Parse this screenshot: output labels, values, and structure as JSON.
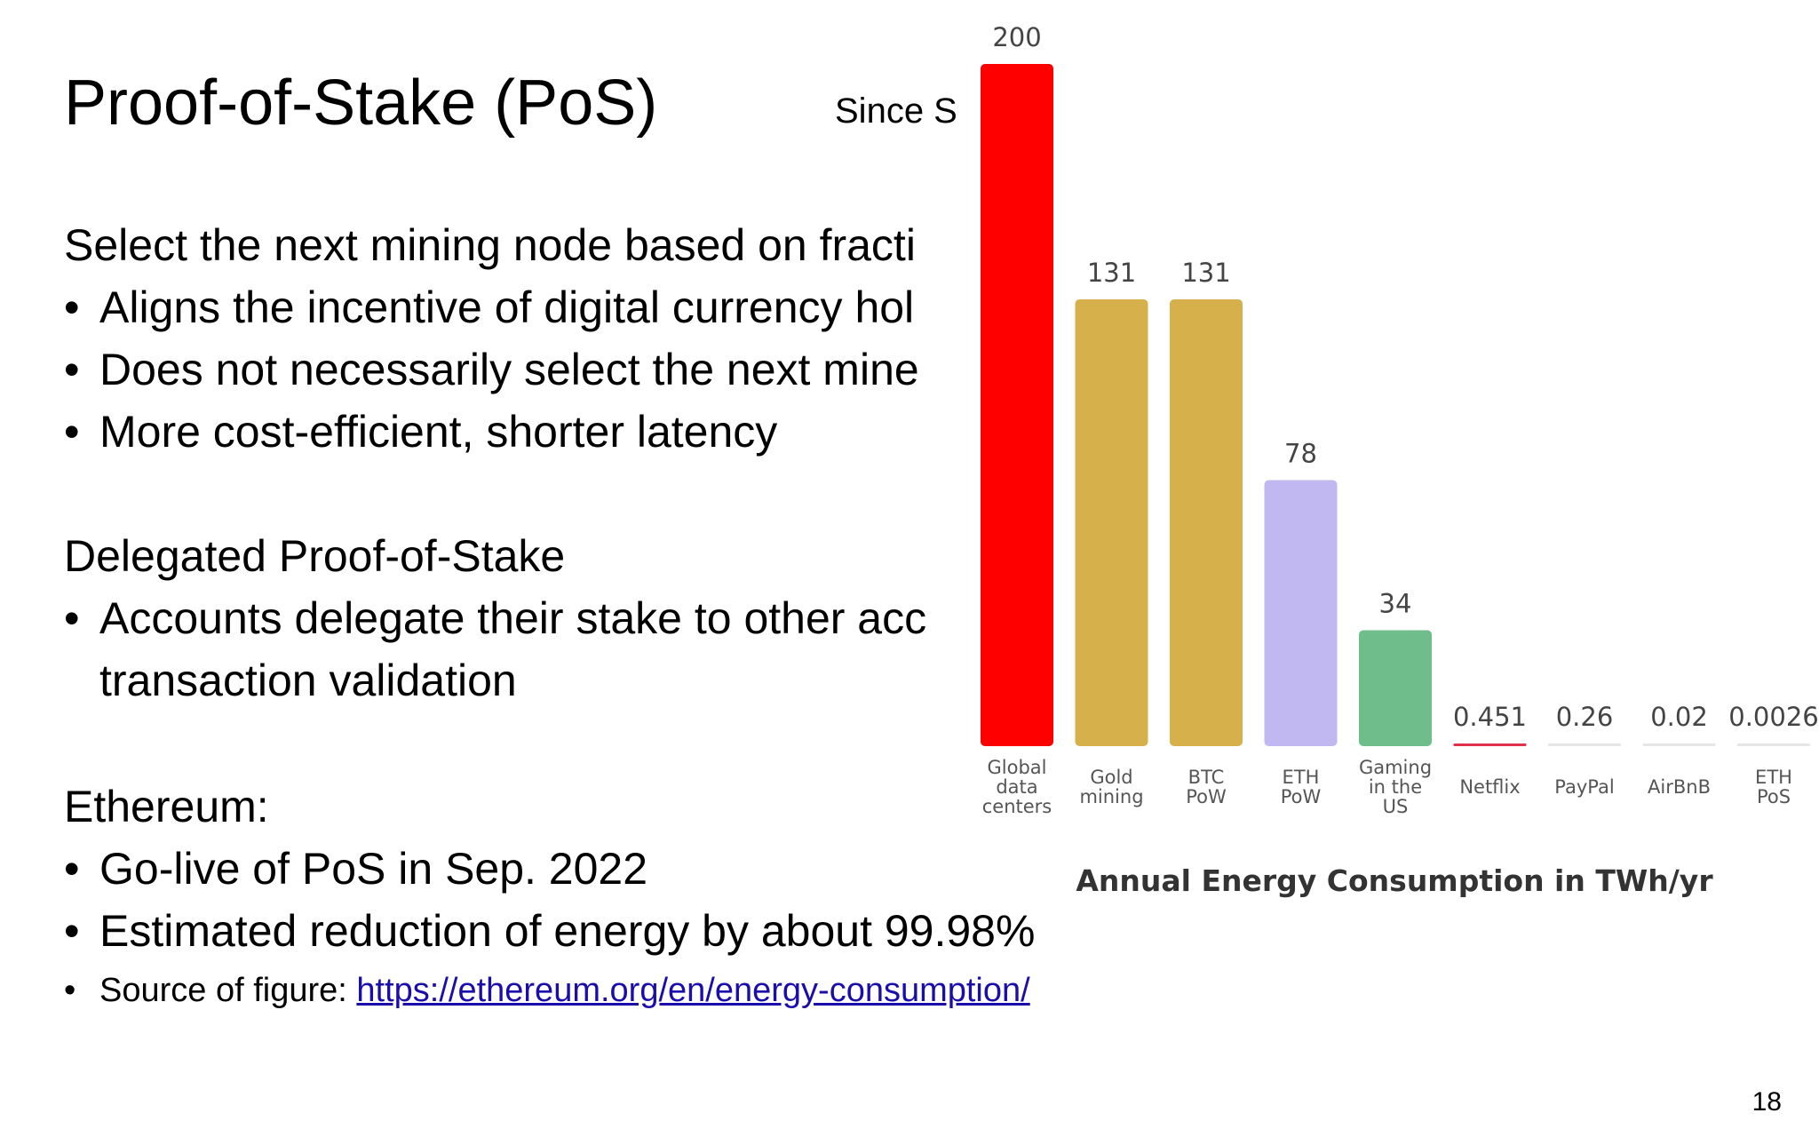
{
  "slide": {
    "title": "Proof-of-Stake (PoS)",
    "since_text": "Since S",
    "section1": {
      "heading": "Select the next mining node based on fracti",
      "bullets": [
        "Aligns the incentive of digital currency hol",
        "Does not necessarily select the next mine",
        "More cost-efficient, shorter latency"
      ]
    },
    "section2": {
      "heading": "Delegated Proof-of-Stake",
      "bullet": "Accounts delegate their stake to other acc",
      "bullet_cont": "transaction validation"
    },
    "section3": {
      "heading": "Ethereum:",
      "bullets": [
        "Go-live of PoS in Sep. 2022",
        "Estimated reduction of energy by about 99.98%"
      ],
      "source_prefix": "Source of figure: ",
      "source_link": "https://ethereum.org/en/energy-consumption/"
    },
    "bullet_symbol": "•",
    "page_number": "18"
  },
  "chart_data": {
    "type": "bar",
    "title": "Annual Energy Consumption in TWh/yr",
    "categories": [
      [
        "Global",
        "data",
        "centers"
      ],
      [
        "Gold",
        "mining"
      ],
      [
        "BTC",
        "PoW"
      ],
      [
        "ETH",
        "PoW"
      ],
      [
        "Gaming",
        "in the",
        "US"
      ],
      [
        "Netflix"
      ],
      [
        "PayPal"
      ],
      [
        "AirBnB"
      ],
      [
        "ETH",
        "PoS"
      ]
    ],
    "values": [
      200,
      131,
      131,
      78,
      34,
      0.451,
      0.26,
      0.02,
      0.0026
    ],
    "value_labels": [
      "200",
      "131",
      "131",
      "78",
      "34",
      "0.451",
      "0.26",
      "0.02",
      "0.0026"
    ],
    "colors": [
      "#ff0000",
      "#d6b04a",
      "#d6b04a",
      "#c1b8f2",
      "#6fbd8a",
      "#e0304a",
      "#e6e6e6",
      "#e6e6e6",
      "#e6e6e6"
    ],
    "ylim": [
      0,
      200
    ],
    "grid": false,
    "legend": "none"
  }
}
